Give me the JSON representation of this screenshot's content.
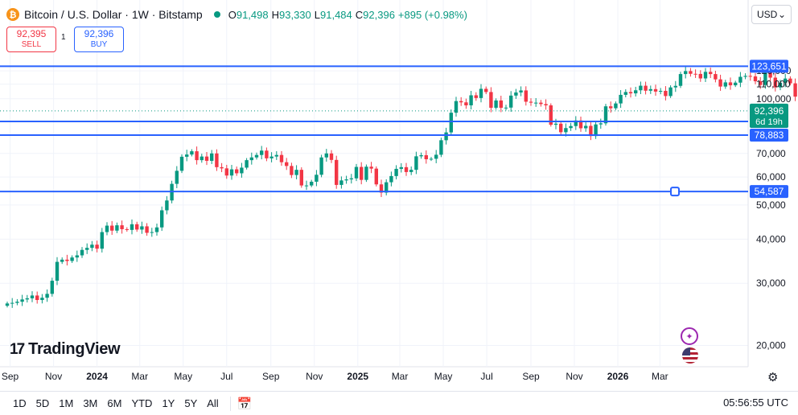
{
  "header": {
    "coin_symbol": "₿",
    "title": "Bitcoin / U.S. Dollar · 1W · Bitstamp",
    "status_color": "#089981",
    "open_label": "O",
    "open": "91,498",
    "high_label": "H",
    "high": "93,330",
    "low_label": "L",
    "low": "91,484",
    "close_label": "C",
    "close": "92,396",
    "change": "+895 (+0.98%)"
  },
  "trade": {
    "sell_price": "92,395",
    "sell_label": "SELL",
    "spread": "1",
    "buy_price": "92,396",
    "buy_label": "BUY"
  },
  "currency": {
    "selected": "USD",
    "icon": "chevron-down-icon"
  },
  "price_labels": {
    "current_price": "92,396",
    "countdown": "6d 19h",
    "line_123651": "123,651",
    "line_86253": "86,253",
    "line_78883": "78,883",
    "line_54587": "54,587"
  },
  "colors": {
    "up": "#089981",
    "down": "#f23645",
    "line": "#2962ff",
    "accent": "#2962ff"
  },
  "brand": {
    "name": "TradingView",
    "mark": "17"
  },
  "toolbar": {
    "timeframes": [
      "1D",
      "5D",
      "1M",
      "3M",
      "6M",
      "YTD",
      "1Y",
      "5Y",
      "All"
    ],
    "time": "05:56:55 UTC"
  },
  "chart_data": {
    "type": "candlestick",
    "interval": "1W",
    "yaxis": {
      "scale": "log",
      "ticks": [
        20000,
        30000,
        40000,
        50000,
        60000,
        70000,
        100000,
        110000,
        120000
      ],
      "tick_labels": [
        "20,000",
        "30,000",
        "40,000",
        "50,000",
        "60,000",
        "70,000",
        "100,000",
        "110,000",
        "120,000"
      ]
    },
    "xaxis": {
      "ticks": [
        "2023-09-01",
        "2023-11-01",
        "2024-01-01",
        "2024-03-01",
        "2024-05-01",
        "2024-07-01",
        "2024-09-01",
        "2024-11-01",
        "2025-01-01",
        "2025-03-01",
        "2025-05-01",
        "2025-07-01",
        "2025-09-01",
        "2025-11-01",
        "2026-01-01",
        "2026-03-01"
      ],
      "tick_labels": [
        "Sep",
        "Nov",
        "2024",
        "Mar",
        "May",
        "Jul",
        "Sep",
        "Nov",
        "2025",
        "Mar",
        "May",
        "Jul",
        "Sep",
        "Nov",
        "2026",
        "Mar"
      ]
    },
    "horizontal_lines": [
      123651,
      86253,
      78883,
      54587
    ],
    "current_price": 92396,
    "ohlc_last": {
      "open": 91498,
      "high": 93330,
      "low": 91484,
      "close": 92396
    },
    "closes": [
      26300,
      26400,
      26600,
      27000,
      27200,
      27700,
      26900,
      27300,
      28000,
      30500,
      34500,
      35000,
      34700,
      35500,
      36000,
      37300,
      37800,
      38600,
      37600,
      41900,
      43700,
      42300,
      43800,
      42700,
      42500,
      44100,
      42600,
      43500,
      41700,
      41900,
      43200,
      48300,
      51500,
      57400,
      62500,
      68500,
      69500,
      71000,
      67000,
      68600,
      66700,
      70000,
      64000,
      63500,
      60600,
      63100,
      61500,
      63800,
      67000,
      68200,
      69300,
      71300,
      67800,
      68600,
      69300,
      66100,
      64500,
      60800,
      62900,
      56800,
      56800,
      58200,
      60900,
      68200,
      70000,
      67100,
      57000,
      58700,
      59100,
      59500,
      64100,
      58900,
      64200,
      63400,
      57200,
      54200,
      58000,
      60400,
      63300,
      64000,
      62000,
      62900,
      68700,
      69200,
      67400,
      67600,
      69400,
      76300,
      80300,
      91300,
      98500,
      97700,
      95800,
      102300,
      100500,
      106700,
      104500,
      94300,
      98900,
      94300,
      94400,
      102100,
      104200,
      105600,
      98100,
      97500,
      97500,
      96600,
      95800,
      84400,
      85000,
      80400,
      82600,
      83700,
      86800,
      82500,
      83800,
      78400,
      84600,
      85200,
      95200,
      94000,
      97000,
      102600,
      104500,
      103600,
      105700,
      108900,
      105400,
      106500,
      104800,
      105300,
      101800,
      107700,
      108800,
      117500,
      119800,
      117700,
      117600,
      114200,
      119200,
      117500,
      113500,
      108300,
      111300,
      109200,
      111100,
      115400,
      116100,
      115700,
      112100,
      109400,
      123600,
      114800,
      107700,
      111000,
      114100,
      110600,
      101400,
      94200,
      86700,
      91600,
      90400,
      88500,
      90400,
      88000,
      87600,
      91000,
      92396
    ]
  }
}
